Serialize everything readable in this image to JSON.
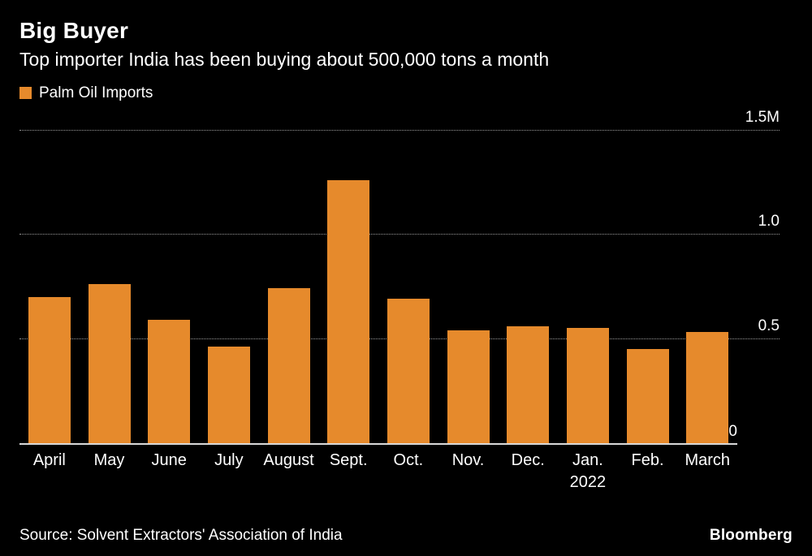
{
  "header": {
    "title": "Big Buyer",
    "subtitle": "Top importer India has been buying about 500,000 tons a month"
  },
  "legend": {
    "label": "Palm Oil Imports",
    "color": "#E68A2C"
  },
  "chart_data": {
    "type": "bar",
    "title": "Big Buyer",
    "subtitle": "Top importer India has been buying about 500,000 tons a month",
    "series_name": "Palm Oil Imports",
    "categories": [
      "April",
      "May",
      "June",
      "July",
      "August",
      "Sept.",
      "Oct.",
      "Nov.",
      "Dec.",
      "Jan.",
      "Feb.",
      "March"
    ],
    "category_sublabels": [
      "",
      "",
      "",
      "",
      "",
      "",
      "",
      "",
      "",
      "2022",
      "",
      ""
    ],
    "values": [
      0.7,
      0.76,
      0.59,
      0.46,
      0.74,
      1.26,
      0.69,
      0.54,
      0.56,
      0.55,
      0.45,
      0.53
    ],
    "unit": "million tons",
    "ylim": [
      0,
      1.5
    ],
    "yticks": [
      {
        "value": 1.5,
        "label": "1.5M"
      },
      {
        "value": 1.0,
        "label": "1.0"
      },
      {
        "value": 0.5,
        "label": "0.5"
      },
      {
        "value": 0,
        "label": "0"
      }
    ],
    "bar_color": "#E68A2C",
    "grid": "horizontal-dotted",
    "legend_position": "top-left",
    "ylabel": "",
    "xlabel": ""
  },
  "footer": {
    "source": "Source: Solvent Extractors' Association of India",
    "brand": "Bloomberg"
  }
}
